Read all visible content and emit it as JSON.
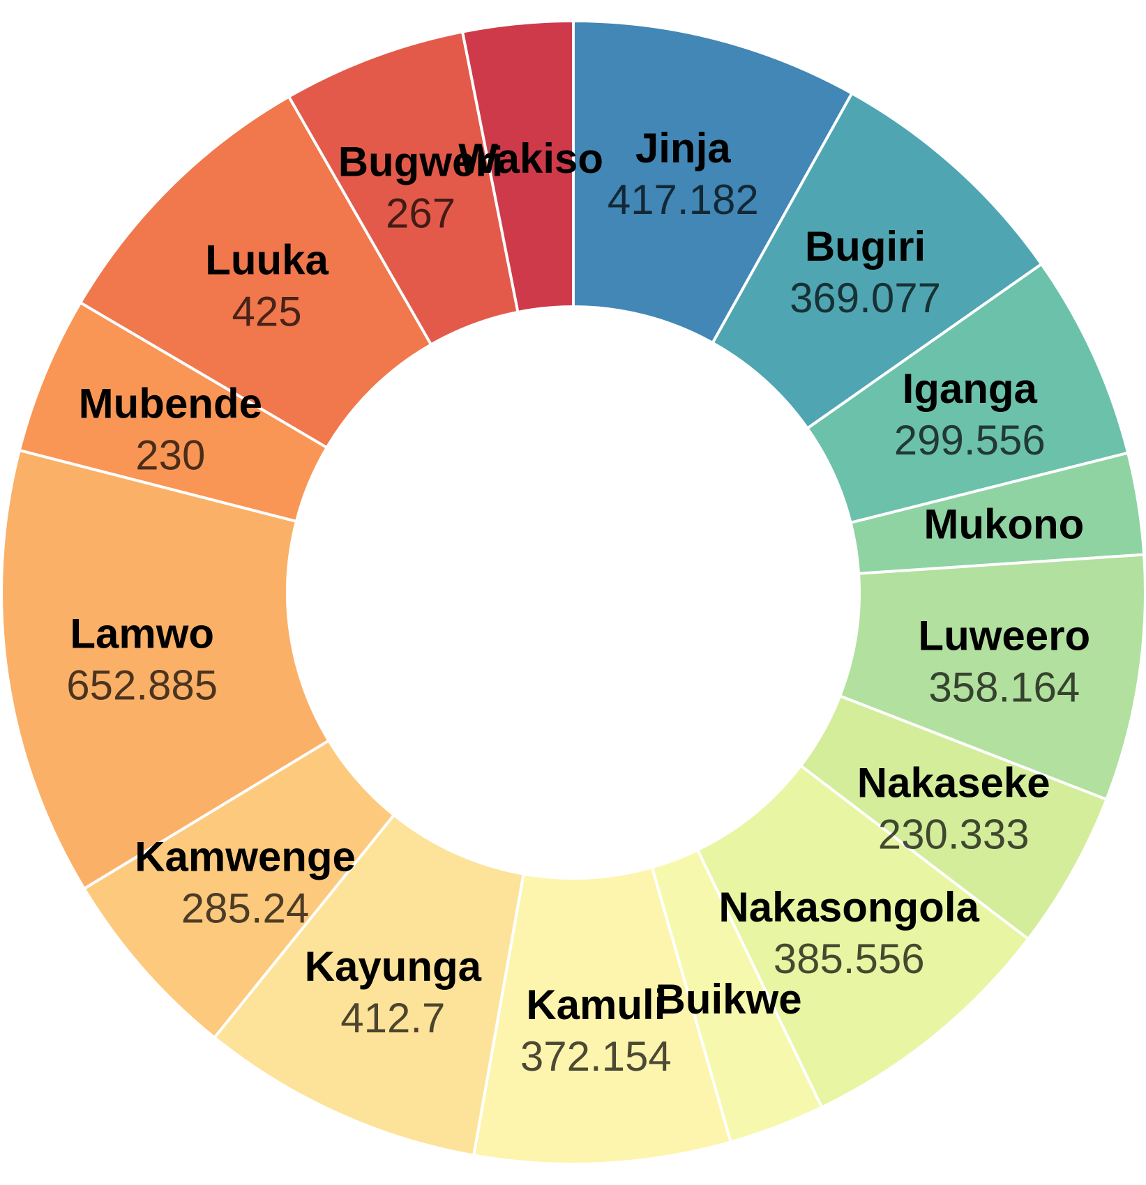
{
  "chart_data": {
    "type": "pie",
    "donut": true,
    "title": "",
    "slices": [
      {
        "label": "Jinja",
        "value": 417.182,
        "value_text": "417.182",
        "color": "#4287b5"
      },
      {
        "label": "Bugiri",
        "value": 369.077,
        "value_text": "369.077",
        "color": "#4fa6b2"
      },
      {
        "label": "Iganga",
        "value": 299.556,
        "value_text": "299.556",
        "color": "#6cc1aa"
      },
      {
        "label": "Mukono",
        "value": 148,
        "value_text": "",
        "color": "#8fd3a3"
      },
      {
        "label": "Luweero",
        "value": 358.164,
        "value_text": "358.164",
        "color": "#b2e09e"
      },
      {
        "label": "Nakaseke",
        "value": 230.333,
        "value_text": "230.333",
        "color": "#d3ed9b"
      },
      {
        "label": "Nakasongola",
        "value": 385.556,
        "value_text": "385.556",
        "color": "#e8f5a2"
      },
      {
        "label": "Buikwe",
        "value": 140,
        "value_text": "",
        "color": "#f6f9ad"
      },
      {
        "label": "Kamuli",
        "value": 372.154,
        "value_text": "372.154",
        "color": "#fdf5ad"
      },
      {
        "label": "Kayunga",
        "value": 412.7,
        "value_text": "412.7",
        "color": "#fde399"
      },
      {
        "label": "Kamwenge",
        "value": 285.24,
        "value_text": "285.24",
        "color": "#fdc97d"
      },
      {
        "label": "Lamwo",
        "value": 652.885,
        "value_text": "652.885",
        "color": "#fbb068"
      },
      {
        "label": "Mubende",
        "value": 230,
        "value_text": "230",
        "color": "#f99656"
      },
      {
        "label": "Luuka",
        "value": 425,
        "value_text": "425",
        "color": "#f1774d"
      },
      {
        "label": "Bugweri",
        "value": 267,
        "value_text": "267",
        "color": "#e45a4a"
      },
      {
        "label": "Wakiso",
        "value": 160,
        "value_text": "",
        "color": "#cf3a4a"
      }
    ]
  }
}
